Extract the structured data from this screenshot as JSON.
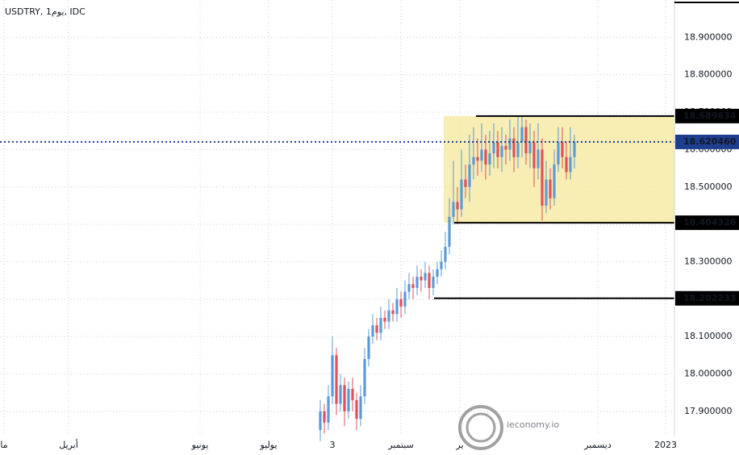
{
  "chart_data": {
    "type": "candlestick",
    "title": "USDTRY, 1يوم, IDC",
    "watermark": "ieconomy.io",
    "open": [
      17.85,
      17.9,
      17.87,
      17.94,
      18.05,
      17.92,
      17.97,
      17.9,
      17.96,
      17.93,
      17.88,
      17.94,
      18.04,
      18.1,
      18.13,
      18.11,
      18.15,
      18.14,
      18.17,
      18.16,
      18.2,
      18.18,
      18.22,
      18.24,
      18.23,
      18.26,
      18.25,
      18.27,
      18.23,
      18.26,
      18.28,
      18.3,
      18.34,
      18.42,
      18.46,
      18.44,
      18.52,
      18.5,
      18.56,
      18.58,
      18.57,
      18.6,
      18.56,
      18.59,
      18.62,
      18.58,
      18.61,
      18.6,
      18.63,
      18.58,
      18.62,
      18.66,
      18.59,
      18.62,
      18.55,
      18.6,
      18.45,
      18.52,
      18.47,
      18.56,
      18.62,
      18.58,
      18.54,
      18.58
    ],
    "high": [
      17.93,
      17.92,
      17.97,
      18.1,
      18.07,
      18.0,
      17.99,
      17.98,
      17.99,
      17.95,
      17.97,
      18.07,
      18.12,
      18.16,
      18.15,
      18.18,
      18.17,
      18.2,
      18.19,
      18.23,
      18.22,
      18.25,
      18.27,
      18.26,
      18.29,
      18.28,
      18.3,
      18.29,
      18.28,
      18.3,
      18.33,
      18.38,
      18.47,
      18.57,
      18.5,
      18.6,
      18.56,
      18.64,
      18.66,
      18.63,
      18.67,
      18.64,
      18.65,
      18.67,
      18.65,
      18.66,
      18.64,
      18.68,
      18.66,
      18.69,
      18.69,
      18.68,
      18.67,
      18.65,
      18.67,
      18.63,
      18.57,
      18.55,
      18.6,
      18.66,
      18.66,
      18.62,
      18.66,
      18.64
    ],
    "low": [
      17.82,
      17.84,
      17.85,
      17.92,
      17.89,
      17.9,
      17.86,
      17.88,
      17.9,
      17.85,
      17.86,
      17.92,
      18.02,
      18.08,
      18.09,
      18.09,
      18.12,
      18.12,
      18.14,
      18.14,
      18.15,
      18.16,
      18.2,
      18.2,
      18.21,
      18.22,
      18.23,
      18.2,
      18.21,
      18.24,
      18.26,
      18.28,
      18.32,
      18.4,
      18.4,
      18.42,
      18.47,
      18.46,
      18.52,
      18.53,
      18.54,
      18.52,
      18.53,
      18.55,
      18.55,
      18.54,
      18.56,
      18.57,
      18.54,
      18.55,
      18.58,
      18.56,
      18.55,
      18.5,
      18.52,
      18.41,
      18.43,
      18.44,
      18.45,
      18.54,
      18.55,
      18.52,
      18.52,
      18.55
    ],
    "close": [
      17.9,
      17.87,
      17.94,
      18.05,
      17.92,
      17.97,
      17.9,
      17.96,
      17.93,
      17.88,
      17.94,
      18.04,
      18.1,
      18.13,
      18.11,
      18.15,
      18.14,
      18.17,
      18.16,
      18.2,
      18.18,
      18.22,
      18.24,
      18.23,
      18.26,
      18.25,
      18.27,
      18.23,
      18.26,
      18.28,
      18.3,
      18.34,
      18.42,
      18.46,
      18.44,
      18.52,
      18.5,
      18.56,
      18.58,
      18.57,
      18.6,
      18.56,
      18.59,
      18.62,
      18.58,
      18.61,
      18.6,
      18.63,
      18.58,
      18.62,
      18.66,
      18.59,
      18.62,
      18.55,
      18.6,
      18.45,
      18.52,
      18.47,
      18.56,
      18.62,
      18.58,
      18.54,
      18.58,
      18.62
    ],
    "up_color": "#5b9bd5",
    "down_color": "#e0505a",
    "xlim": [
      -79.4,
      87.8
    ],
    "xticks": [
      {
        "value": -78.4,
        "label": "ما"
      },
      {
        "value": -62.4,
        "label": "أبريل"
      },
      {
        "value": -29.8,
        "label": "يونيو"
      },
      {
        "value": -12.8,
        "label": "يوليو"
      },
      3,
      {
        "value": 20,
        "label": "سبتمبر"
      },
      {
        "value": 34.6,
        "label": "ير"
      },
      {
        "value": 68.8,
        "label": "ديسمبر"
      },
      {
        "value": 85.6,
        "label": "2023"
      }
    ],
    "ylim": [
      17.835,
      19.0
    ],
    "yticks": [
      {
        "value": 17.9,
        "label": "17.900000"
      },
      {
        "value": 18.0,
        "label": "18.000000"
      },
      {
        "value": 18.1,
        "label": "18.100000"
      },
      {
        "value": 18.2,
        "label": "18.200000"
      },
      {
        "value": 18.3,
        "label": "18.300000"
      },
      {
        "value": 18.4,
        "label": "18.400000"
      },
      {
        "value": 18.5,
        "label": "18.500000"
      },
      {
        "value": 18.6,
        "label": "18.600000"
      },
      {
        "value": 18.7,
        "label": "18.700000"
      },
      {
        "value": 18.8,
        "label": "18.800000"
      },
      {
        "value": 18.9,
        "label": "18.900000"
      }
    ],
    "levels": [
      18.689634,
      {
        "value": 18.62046,
        "label": "18.620460"
      },
      18.404326,
      18.202233
    ],
    "zone_color": "#f7eaa6",
    "grid": true
  }
}
